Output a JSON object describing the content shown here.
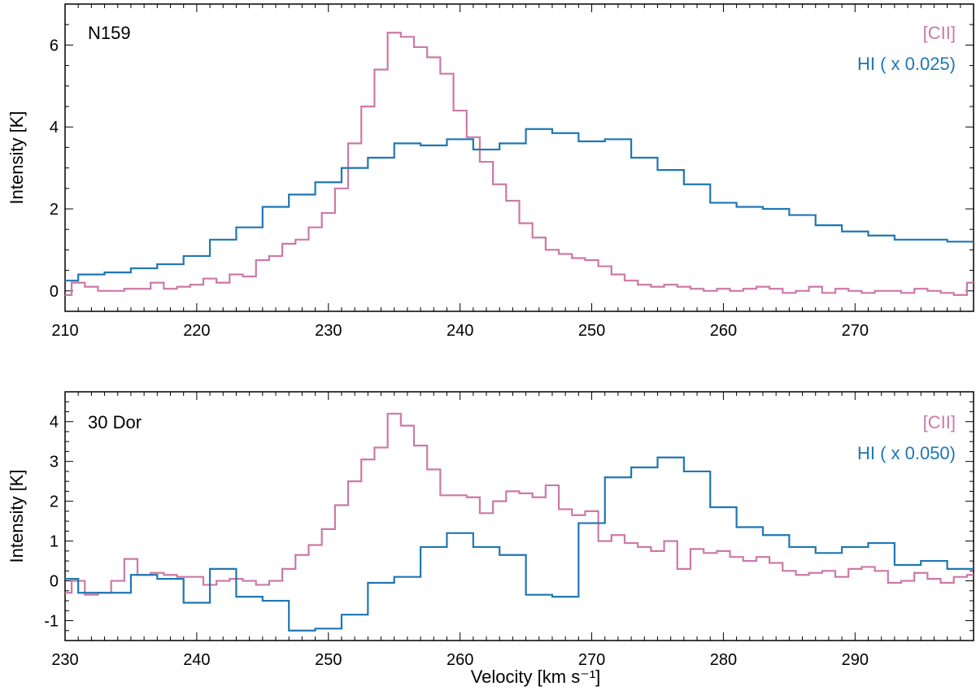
{
  "colors": {
    "cii": "#cc79a7",
    "hi": "#1f77b4"
  },
  "chart_data": [
    {
      "type": "line",
      "step": true,
      "title": "N159",
      "xlabel": "",
      "ylabel": "Intensity [K]",
      "xlim": [
        210,
        279
      ],
      "ylim": [
        -0.5,
        7.0
      ],
      "xticks": [
        "210",
        "220",
        "230",
        "240",
        "250",
        "260",
        "270"
      ],
      "yticks": [
        "0",
        "2",
        "4",
        "6"
      ],
      "legend": "top-right",
      "series": [
        {
          "name": "[CII]",
          "color": "#cc79a7",
          "x": [
            210,
            211,
            212,
            213,
            214,
            215,
            216,
            217,
            218,
            219,
            220,
            221,
            222,
            223,
            224,
            225,
            226,
            227,
            228,
            229,
            230,
            231,
            232,
            233,
            234,
            235,
            236,
            237,
            238,
            239,
            240,
            241,
            242,
            243,
            244,
            245,
            246,
            247,
            248,
            249,
            250,
            251,
            252,
            253,
            254,
            255,
            256,
            257,
            258,
            259,
            260,
            261,
            262,
            263,
            264,
            265,
            266,
            267,
            268,
            269,
            270,
            271,
            272,
            273,
            274,
            275,
            276,
            277,
            278,
            279
          ],
          "y": [
            -0.1,
            0.2,
            0.1,
            0.0,
            0.0,
            0.05,
            0.05,
            0.2,
            0.05,
            0.1,
            0.15,
            0.3,
            0.2,
            0.4,
            0.35,
            0.75,
            0.85,
            1.15,
            1.25,
            1.55,
            1.9,
            2.5,
            3.6,
            4.5,
            5.4,
            6.3,
            6.2,
            5.95,
            5.7,
            5.3,
            4.4,
            3.75,
            3.15,
            2.6,
            2.2,
            1.65,
            1.3,
            1.0,
            0.9,
            0.8,
            0.75,
            0.6,
            0.4,
            0.25,
            0.15,
            0.1,
            0.15,
            0.1,
            0.05,
            0.0,
            0.05,
            0.0,
            0.05,
            0.1,
            0.05,
            -0.05,
            0.0,
            0.1,
            -0.05,
            0.05,
            0.0,
            -0.05,
            0.0,
            0.0,
            -0.05,
            0.05,
            0.0,
            -0.05,
            -0.1,
            0.2
          ]
        },
        {
          "name": "HI ( x 0.025)",
          "color": "#1f77b4",
          "x": [
            210,
            212,
            214,
            216,
            218,
            220,
            222,
            224,
            226,
            228,
            230,
            232,
            234,
            236,
            238,
            240,
            242,
            244,
            246,
            248,
            250,
            252,
            254,
            256,
            258,
            260,
            262,
            264,
            266,
            268,
            270,
            272,
            274,
            276,
            278
          ],
          "y": [
            0.25,
            0.4,
            0.45,
            0.55,
            0.65,
            0.85,
            1.25,
            1.55,
            2.05,
            2.35,
            2.65,
            3.0,
            3.25,
            3.6,
            3.55,
            3.7,
            3.45,
            3.6,
            3.95,
            3.85,
            3.65,
            3.7,
            3.25,
            2.95,
            2.6,
            2.15,
            2.05,
            2.0,
            1.85,
            1.6,
            1.45,
            1.35,
            1.25,
            1.25,
            1.2
          ]
        }
      ]
    },
    {
      "type": "line",
      "step": true,
      "title": "30 Dor",
      "xlabel": "Velocity [km s⁻¹]",
      "ylabel": "Intensity [K]",
      "xlim": [
        230,
        299
      ],
      "ylim": [
        -1.5,
        4.75
      ],
      "xticks": [
        "230",
        "240",
        "250",
        "260",
        "270",
        "280",
        "290"
      ],
      "yticks": [
        "-1",
        "0",
        "1",
        "2",
        "3",
        "4"
      ],
      "legend": "top-right",
      "series": [
        {
          "name": "[CII]",
          "color": "#cc79a7",
          "x": [
            230,
            231,
            232,
            233,
            234,
            235,
            236,
            237,
            238,
            239,
            240,
            241,
            242,
            243,
            244,
            245,
            246,
            247,
            248,
            249,
            250,
            251,
            252,
            253,
            254,
            255,
            256,
            257,
            258,
            259,
            260,
            261,
            262,
            263,
            264,
            265,
            266,
            267,
            268,
            269,
            270,
            271,
            272,
            273,
            274,
            275,
            276,
            277,
            278,
            279,
            280,
            281,
            282,
            283,
            284,
            285,
            286,
            287,
            288,
            289,
            290,
            291,
            292,
            293,
            294,
            295,
            296,
            297,
            298,
            299
          ],
          "y": [
            -0.3,
            0.0,
            -0.35,
            -0.3,
            0.0,
            0.55,
            0.15,
            0.2,
            0.15,
            0.1,
            0.1,
            -0.1,
            0.0,
            0.05,
            0.0,
            -0.1,
            0.0,
            0.3,
            0.65,
            0.9,
            1.3,
            1.9,
            2.5,
            3.05,
            3.35,
            4.2,
            3.9,
            3.4,
            2.8,
            2.15,
            2.15,
            2.1,
            1.7,
            2.0,
            2.25,
            2.2,
            2.1,
            2.4,
            1.8,
            1.65,
            1.75,
            1.0,
            1.15,
            0.95,
            0.85,
            0.75,
            1.0,
            0.3,
            0.8,
            0.7,
            0.75,
            0.6,
            0.5,
            0.6,
            0.45,
            0.25,
            0.15,
            0.2,
            0.25,
            0.1,
            0.3,
            0.35,
            0.25,
            -0.05,
            0.0,
            0.2,
            0.05,
            -0.05,
            0.1,
            0.15
          ]
        },
        {
          "name": "HI ( x 0.050)",
          "color": "#1f77b4",
          "x": [
            230,
            232,
            234,
            236,
            238,
            240,
            242,
            244,
            246,
            248,
            250,
            252,
            254,
            256,
            258,
            260,
            262,
            264,
            266,
            268,
            270,
            272,
            274,
            276,
            278,
            280,
            282,
            284,
            286,
            288,
            290,
            292,
            294,
            296,
            298
          ],
          "y": [
            0.05,
            -0.3,
            -0.3,
            0.15,
            0.05,
            -0.55,
            0.3,
            -0.4,
            -0.5,
            -1.25,
            -1.2,
            -0.85,
            -0.05,
            0.1,
            0.85,
            1.2,
            0.85,
            0.65,
            -0.35,
            -0.4,
            1.45,
            2.6,
            2.85,
            3.1,
            2.75,
            1.85,
            1.35,
            1.15,
            0.85,
            0.7,
            0.85,
            0.95,
            0.4,
            0.5,
            0.3
          ]
        }
      ]
    }
  ]
}
